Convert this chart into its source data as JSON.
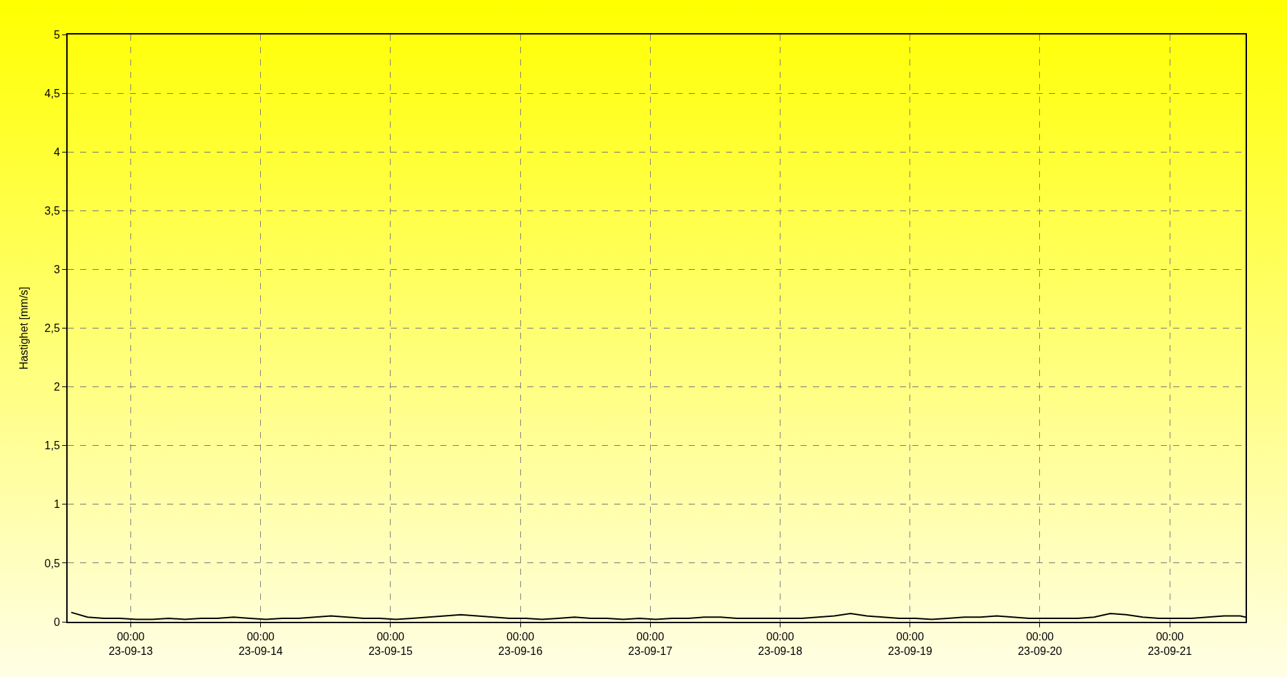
{
  "chart_data": {
    "type": "line",
    "ylabel": "Hastighet [mm/s]",
    "x": [
      "--09-12T13:00",
      "--09-12T16:00",
      "--09-12T19:00",
      "--09-12T22:00",
      "--09-13T01:00",
      "--09-13T04:00",
      "--09-13T07:00",
      "--09-13T10:00",
      "--09-13T13:00",
      "--09-13T16:00",
      "--09-13T19:00",
      "--09-13T22:00",
      "--09-14T01:00",
      "--09-14T04:00",
      "--09-14T07:00",
      "--09-14T10:00",
      "--09-14T13:00",
      "--09-14T16:00",
      "--09-14T19:00",
      "--09-14T22:00",
      "--09-15T01:00",
      "--09-15T04:00",
      "--09-15T07:00",
      "--09-15T10:00",
      "--09-15T13:00",
      "--09-15T16:00",
      "--09-15T19:00",
      "--09-15T22:00",
      "--09-16T01:00",
      "--09-16T04:00",
      "--09-16T07:00",
      "--09-16T10:00",
      "--09-16T13:00",
      "--09-16T16:00",
      "--09-16T19:00",
      "--09-16T22:00",
      "--09-17T01:00",
      "--09-17T04:00",
      "--09-17T07:00",
      "--09-17T10:00",
      "--09-17T13:00",
      "--09-17T16:00",
      "--09-17T19:00",
      "--09-17T22:00",
      "--09-18T01:00",
      "--09-18T04:00",
      "--09-18T07:00",
      "--09-18T10:00",
      "--09-18T13:00",
      "--09-18T16:00",
      "--09-18T19:00",
      "--09-18T22:00",
      "--09-19T01:00",
      "--09-19T04:00",
      "--09-19T07:00",
      "--09-19T10:00",
      "--09-19T13:00",
      "--09-19T16:00",
      "--09-19T19:00",
      "--09-19T22:00",
      "--09-20T01:00",
      "--09-20T04:00",
      "--09-20T07:00",
      "--09-20T10:00",
      "--09-20T13:00",
      "--09-20T16:00",
      "--09-20T19:00",
      "--09-20T22:00",
      "--09-21T01:00",
      "--09-21T04:00",
      "--09-21T07:00",
      "--09-21T10:00",
      "--09-21T13:00",
      "--09-21T14:00"
    ],
    "series": [
      {
        "color": "#000000",
        "values": [
          0.08,
          0.04,
          0.03,
          0.03,
          0.02,
          0.02,
          0.03,
          0.02,
          0.03,
          0.03,
          0.04,
          0.03,
          0.02,
          0.03,
          0.03,
          0.04,
          0.05,
          0.04,
          0.03,
          0.03,
          0.02,
          0.03,
          0.04,
          0.05,
          0.06,
          0.05,
          0.04,
          0.03,
          0.03,
          0.02,
          0.03,
          0.04,
          0.03,
          0.03,
          0.02,
          0.03,
          0.02,
          0.03,
          0.03,
          0.04,
          0.04,
          0.03,
          0.03,
          0.03,
          0.03,
          0.03,
          0.04,
          0.05,
          0.07,
          0.05,
          0.04,
          0.03,
          0.03,
          0.02,
          0.03,
          0.04,
          0.04,
          0.05,
          0.04,
          0.03,
          0.03,
          0.03,
          0.03,
          0.04,
          0.07,
          0.06,
          0.04,
          0.03,
          0.03,
          0.03,
          0.04,
          0.05,
          0.05,
          0.04
        ]
      }
    ],
    "xlim": [
      "--09-12T12:20",
      "--09-21T14:00"
    ],
    "xticks": [
      {
        "value": "--09-13",
        "label": "00:00\n23-09-13"
      },
      {
        "value": "--09-14",
        "label": "00:00\n23-09-14"
      },
      {
        "value": "--09-15",
        "label": "00:00\n23-09-15"
      },
      {
        "value": "--09-16",
        "label": "00:00\n23-09-16"
      },
      {
        "value": "--09-17",
        "label": "00:00\n23-09-17"
      },
      {
        "value": "--09-18",
        "label": "00:00\n23-09-18"
      },
      {
        "value": "--09-19",
        "label": "00:00\n23-09-19"
      },
      {
        "value": "--09-20",
        "label": "00:00\n23-09-20"
      },
      {
        "value": "--09-21",
        "label": "00:00\n23-09-21"
      }
    ],
    "ylim": [
      0,
      5
    ],
    "yticks": [
      0,
      {
        "value": 0.5,
        "label": "0,5"
      },
      1,
      {
        "value": 1.5,
        "label": "1,5"
      },
      2,
      {
        "value": 2.5,
        "label": "2,5"
      },
      3,
      {
        "value": 3.5,
        "label": "3,5"
      },
      4,
      {
        "value": 4.5,
        "label": "4,5"
      },
      5
    ],
    "grid": true,
    "line_style": "solid",
    "marker": "none"
  }
}
